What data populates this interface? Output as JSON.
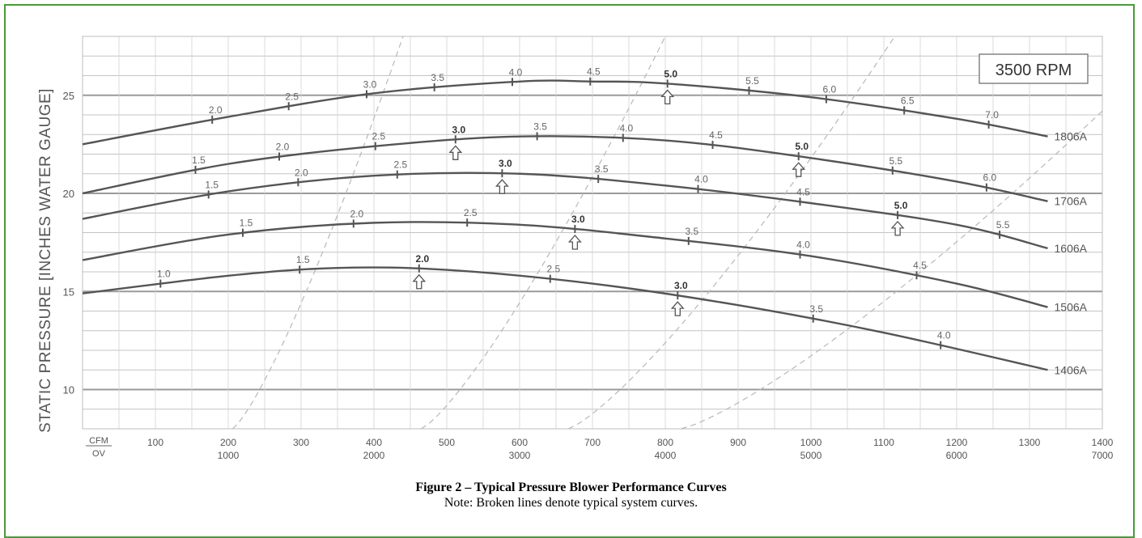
{
  "caption": {
    "title": "Figure 2 – Typical Pressure Blower Performance Curves",
    "note": "Note: Broken lines denote typical system curves."
  },
  "chart_data": {
    "type": "line",
    "title": "",
    "ylabel": "STATIC PRESSURE [INCHES WATER GAUGE]",
    "xlabel_cfm": "CFM",
    "xlabel_ov": "OV",
    "rpm_label": "3500 RPM",
    "xlim": [
      0,
      1400
    ],
    "ylim": [
      8,
      28
    ],
    "grid": true,
    "x_ticks": [
      {
        "cfm": "100",
        "ov": ""
      },
      {
        "cfm": "200",
        "ov": "1000"
      },
      {
        "cfm": "300",
        "ov": ""
      },
      {
        "cfm": "400",
        "ov": "2000"
      },
      {
        "cfm": "500",
        "ov": ""
      },
      {
        "cfm": "600",
        "ov": "3000"
      },
      {
        "cfm": "700",
        "ov": ""
      },
      {
        "cfm": "800",
        "ov": "4000"
      },
      {
        "cfm": "900",
        "ov": ""
      },
      {
        "cfm": "1000",
        "ov": "5000"
      },
      {
        "cfm": "1100",
        "ov": ""
      },
      {
        "cfm": "1200",
        "ov": "6000"
      },
      {
        "cfm": "1300",
        "ov": ""
      },
      {
        "cfm": "1400",
        "ov": "7000"
      }
    ],
    "y_ticks": [
      10,
      15,
      20,
      25
    ],
    "series": [
      {
        "name": "1806A",
        "curve": [
          [
            0,
            22.5
          ],
          [
            200,
            23.9
          ],
          [
            400,
            25.1
          ],
          [
            600,
            25.7
          ],
          [
            700,
            25.7
          ],
          [
            800,
            25.6
          ],
          [
            1000,
            24.9
          ],
          [
            1200,
            23.8
          ],
          [
            1325,
            22.9
          ]
        ],
        "marks": [
          {
            "x": 178,
            "label": "2.0"
          },
          {
            "x": 283,
            "label": "2.5"
          },
          {
            "x": 390,
            "label": "3.0"
          },
          {
            "x": 483,
            "label": "3.5"
          },
          {
            "x": 590,
            "label": "4.0"
          },
          {
            "x": 697,
            "label": "4.5"
          },
          {
            "x": 803,
            "label": "5.0",
            "bold": true
          },
          {
            "x": 915,
            "label": "5.5"
          },
          {
            "x": 1021,
            "label": "6.0"
          },
          {
            "x": 1128,
            "label": "6.5"
          },
          {
            "x": 1244,
            "label": "7.0"
          }
        ],
        "arrow_at": 803
      },
      {
        "name": "1706A",
        "curve": [
          [
            0,
            20.0
          ],
          [
            200,
            21.5
          ],
          [
            400,
            22.4
          ],
          [
            600,
            22.9
          ],
          [
            800,
            22.7
          ],
          [
            1000,
            21.8
          ],
          [
            1200,
            20.6
          ],
          [
            1325,
            19.6
          ]
        ],
        "marks": [
          {
            "x": 155,
            "label": "1.5"
          },
          {
            "x": 270,
            "label": "2.0"
          },
          {
            "x": 402,
            "label": "2.5"
          },
          {
            "x": 512,
            "label": "3.0",
            "bold": true
          },
          {
            "x": 624,
            "label": "3.5"
          },
          {
            "x": 742,
            "label": "4.0"
          },
          {
            "x": 865,
            "label": "4.5"
          },
          {
            "x": 983,
            "label": "5.0",
            "bold": true
          },
          {
            "x": 1112,
            "label": "5.5"
          },
          {
            "x": 1241,
            "label": "6.0"
          }
        ],
        "arrows_at": [
          512,
          983
        ]
      },
      {
        "name": "1606A",
        "curve": [
          [
            0,
            18.7
          ],
          [
            200,
            20.1
          ],
          [
            400,
            20.9
          ],
          [
            600,
            21.0
          ],
          [
            800,
            20.4
          ],
          [
            1000,
            19.5
          ],
          [
            1200,
            18.4
          ],
          [
            1325,
            17.2
          ]
        ],
        "marks": [
          {
            "x": 173,
            "label": "1.5"
          },
          {
            "x": 296,
            "label": "2.0"
          },
          {
            "x": 432,
            "label": "2.5"
          },
          {
            "x": 576,
            "label": "3.0",
            "bold": true
          },
          {
            "x": 708,
            "label": "3.5"
          },
          {
            "x": 845,
            "label": "4.0"
          },
          {
            "x": 985,
            "label": "4.5"
          },
          {
            "x": 1119,
            "label": "5.0",
            "bold": true
          },
          {
            "x": 1259,
            "label": "5.5"
          }
        ],
        "arrows_at": [
          576,
          1119
        ]
      },
      {
        "name": "1506A",
        "curve": [
          [
            0,
            16.6
          ],
          [
            200,
            17.9
          ],
          [
            400,
            18.5
          ],
          [
            600,
            18.4
          ],
          [
            800,
            17.7
          ],
          [
            1000,
            16.8
          ],
          [
            1200,
            15.4
          ],
          [
            1325,
            14.2
          ]
        ],
        "marks": [
          {
            "x": 220,
            "label": "1.5"
          },
          {
            "x": 372,
            "label": "2.0"
          },
          {
            "x": 528,
            "label": "2.5"
          },
          {
            "x": 676,
            "label": "3.0",
            "bold": true
          },
          {
            "x": 832,
            "label": "3.5"
          },
          {
            "x": 985,
            "label": "4.0"
          },
          {
            "x": 1145,
            "label": "4.5"
          }
        ],
        "arrow_at": 676
      },
      {
        "name": "1406A",
        "curve": [
          [
            0,
            14.9
          ],
          [
            200,
            15.8
          ],
          [
            350,
            16.2
          ],
          [
            500,
            16.1
          ],
          [
            700,
            15.4
          ],
          [
            900,
            14.3
          ],
          [
            1100,
            12.9
          ],
          [
            1325,
            11.0
          ]
        ],
        "marks": [
          {
            "x": 107,
            "label": "1.0"
          },
          {
            "x": 298,
            "label": "1.5"
          },
          {
            "x": 462,
            "label": "2.0",
            "bold": true
          },
          {
            "x": 642,
            "label": "2.5"
          },
          {
            "x": 817,
            "label": "3.0",
            "bold": true
          },
          {
            "x": 1003,
            "label": "3.5"
          },
          {
            "x": 1178,
            "label": "4.0"
          }
        ],
        "arrows_at": [
          462,
          817
        ]
      }
    ],
    "system_curves": [
      {
        "k": 4.9e-07,
        "offset": 0.0
      },
      {
        "k": 9.75e-08,
        "offset": 0.0
      },
      {
        "k": 4.95e-08,
        "offset": 0.0
      },
      {
        "k": 2.77e-08,
        "offset": 0.0
      }
    ]
  }
}
